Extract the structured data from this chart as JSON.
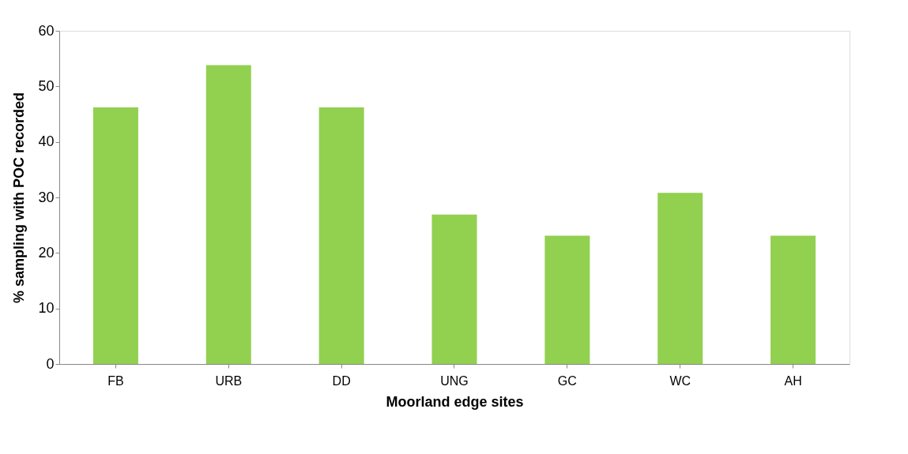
{
  "chart_data": {
    "type": "bar",
    "xlabel": "Moorland edge sites",
    "ylabel": "% sampling with POC recorded",
    "categories": [
      "FB",
      "URB",
      "DD",
      "UNG",
      "GC",
      "WC",
      "AH"
    ],
    "values": [
      46.2,
      53.8,
      46.2,
      26.9,
      23.1,
      30.8,
      23.1
    ],
    "color": "#92d050",
    "ylim": [
      0,
      60
    ],
    "yticks": [
      0,
      10,
      20,
      30,
      40,
      50,
      60
    ],
    "grid": false
  }
}
